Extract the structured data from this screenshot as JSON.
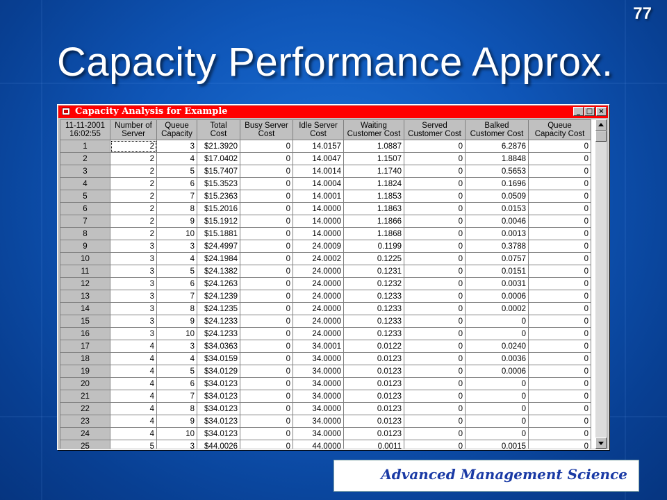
{
  "slide": {
    "number": "77",
    "title": "Capacity Performance Approx.",
    "footer": "Advanced Management Science"
  },
  "window": {
    "title": "Capacity Analysis for Example",
    "controls": {
      "minimize": "_",
      "maximize": "□",
      "close": "×"
    }
  },
  "table": {
    "corner": [
      "11-11-2001",
      "16:02:55"
    ],
    "columns": [
      [
        "Number of",
        "Server"
      ],
      [
        "Queue",
        "Capacity"
      ],
      [
        "Total",
        "Cost"
      ],
      [
        "Busy Server",
        "Cost"
      ],
      [
        "Idle Server",
        "Cost"
      ],
      [
        "Waiting",
        "Customer Cost"
      ],
      [
        "Served",
        "Customer Cost"
      ],
      [
        "Balked",
        "Customer Cost"
      ],
      [
        "Queue",
        "Capacity Cost"
      ]
    ],
    "rows": [
      [
        "1",
        "2",
        "3",
        "$21.3920",
        "0",
        "14.0157",
        "1.0887",
        "0",
        "6.2876",
        "0"
      ],
      [
        "2",
        "2",
        "4",
        "$17.0402",
        "0",
        "14.0047",
        "1.1507",
        "0",
        "1.8848",
        "0"
      ],
      [
        "3",
        "2",
        "5",
        "$15.7407",
        "0",
        "14.0014",
        "1.1740",
        "0",
        "0.5653",
        "0"
      ],
      [
        "4",
        "2",
        "6",
        "$15.3523",
        "0",
        "14.0004",
        "1.1824",
        "0",
        "0.1696",
        "0"
      ],
      [
        "5",
        "2",
        "7",
        "$15.2363",
        "0",
        "14.0001",
        "1.1853",
        "0",
        "0.0509",
        "0"
      ],
      [
        "6",
        "2",
        "8",
        "$15.2016",
        "0",
        "14.0000",
        "1.1863",
        "0",
        "0.0153",
        "0"
      ],
      [
        "7",
        "2",
        "9",
        "$15.1912",
        "0",
        "14.0000",
        "1.1866",
        "0",
        "0.0046",
        "0"
      ],
      [
        "8",
        "2",
        "10",
        "$15.1881",
        "0",
        "14.0000",
        "1.1868",
        "0",
        "0.0013",
        "0"
      ],
      [
        "9",
        "3",
        "3",
        "$24.4997",
        "0",
        "24.0009",
        "0.1199",
        "0",
        "0.3788",
        "0"
      ],
      [
        "10",
        "3",
        "4",
        "$24.1984",
        "0",
        "24.0002",
        "0.1225",
        "0",
        "0.0757",
        "0"
      ],
      [
        "11",
        "3",
        "5",
        "$24.1382",
        "0",
        "24.0000",
        "0.1231",
        "0",
        "0.0151",
        "0"
      ],
      [
        "12",
        "3",
        "6",
        "$24.1263",
        "0",
        "24.0000",
        "0.1232",
        "0",
        "0.0031",
        "0"
      ],
      [
        "13",
        "3",
        "7",
        "$24.1239",
        "0",
        "24.0000",
        "0.1233",
        "0",
        "0.0006",
        "0"
      ],
      [
        "14",
        "3",
        "8",
        "$24.1235",
        "0",
        "24.0000",
        "0.1233",
        "0",
        "0.0002",
        "0"
      ],
      [
        "15",
        "3",
        "9",
        "$24.1233",
        "0",
        "24.0000",
        "0.1233",
        "0",
        "0",
        "0"
      ],
      [
        "16",
        "3",
        "10",
        "$24.1233",
        "0",
        "24.0000",
        "0.1233",
        "0",
        "0",
        "0"
      ],
      [
        "17",
        "4",
        "3",
        "$34.0363",
        "0",
        "34.0001",
        "0.0122",
        "0",
        "0.0240",
        "0"
      ],
      [
        "18",
        "4",
        "4",
        "$34.0159",
        "0",
        "34.0000",
        "0.0123",
        "0",
        "0.0036",
        "0"
      ],
      [
        "19",
        "4",
        "5",
        "$34.0129",
        "0",
        "34.0000",
        "0.0123",
        "0",
        "0.0006",
        "0"
      ],
      [
        "20",
        "4",
        "6",
        "$34.0123",
        "0",
        "34.0000",
        "0.0123",
        "0",
        "0",
        "0"
      ],
      [
        "21",
        "4",
        "7",
        "$34.0123",
        "0",
        "34.0000",
        "0.0123",
        "0",
        "0",
        "0"
      ],
      [
        "22",
        "4",
        "8",
        "$34.0123",
        "0",
        "34.0000",
        "0.0123",
        "0",
        "0",
        "0"
      ],
      [
        "23",
        "4",
        "9",
        "$34.0123",
        "0",
        "34.0000",
        "0.0123",
        "0",
        "0",
        "0"
      ],
      [
        "24",
        "4",
        "10",
        "$34.0123",
        "0",
        "34.0000",
        "0.0123",
        "0",
        "0",
        "0"
      ],
      [
        "25",
        "5",
        "3",
        "$44.0026",
        "0",
        "44.0000",
        "0.0011",
        "0",
        "0.0015",
        "0"
      ]
    ]
  },
  "colors": {
    "titlebar": "#ff0000",
    "footer_text": "#1a3aa5"
  }
}
